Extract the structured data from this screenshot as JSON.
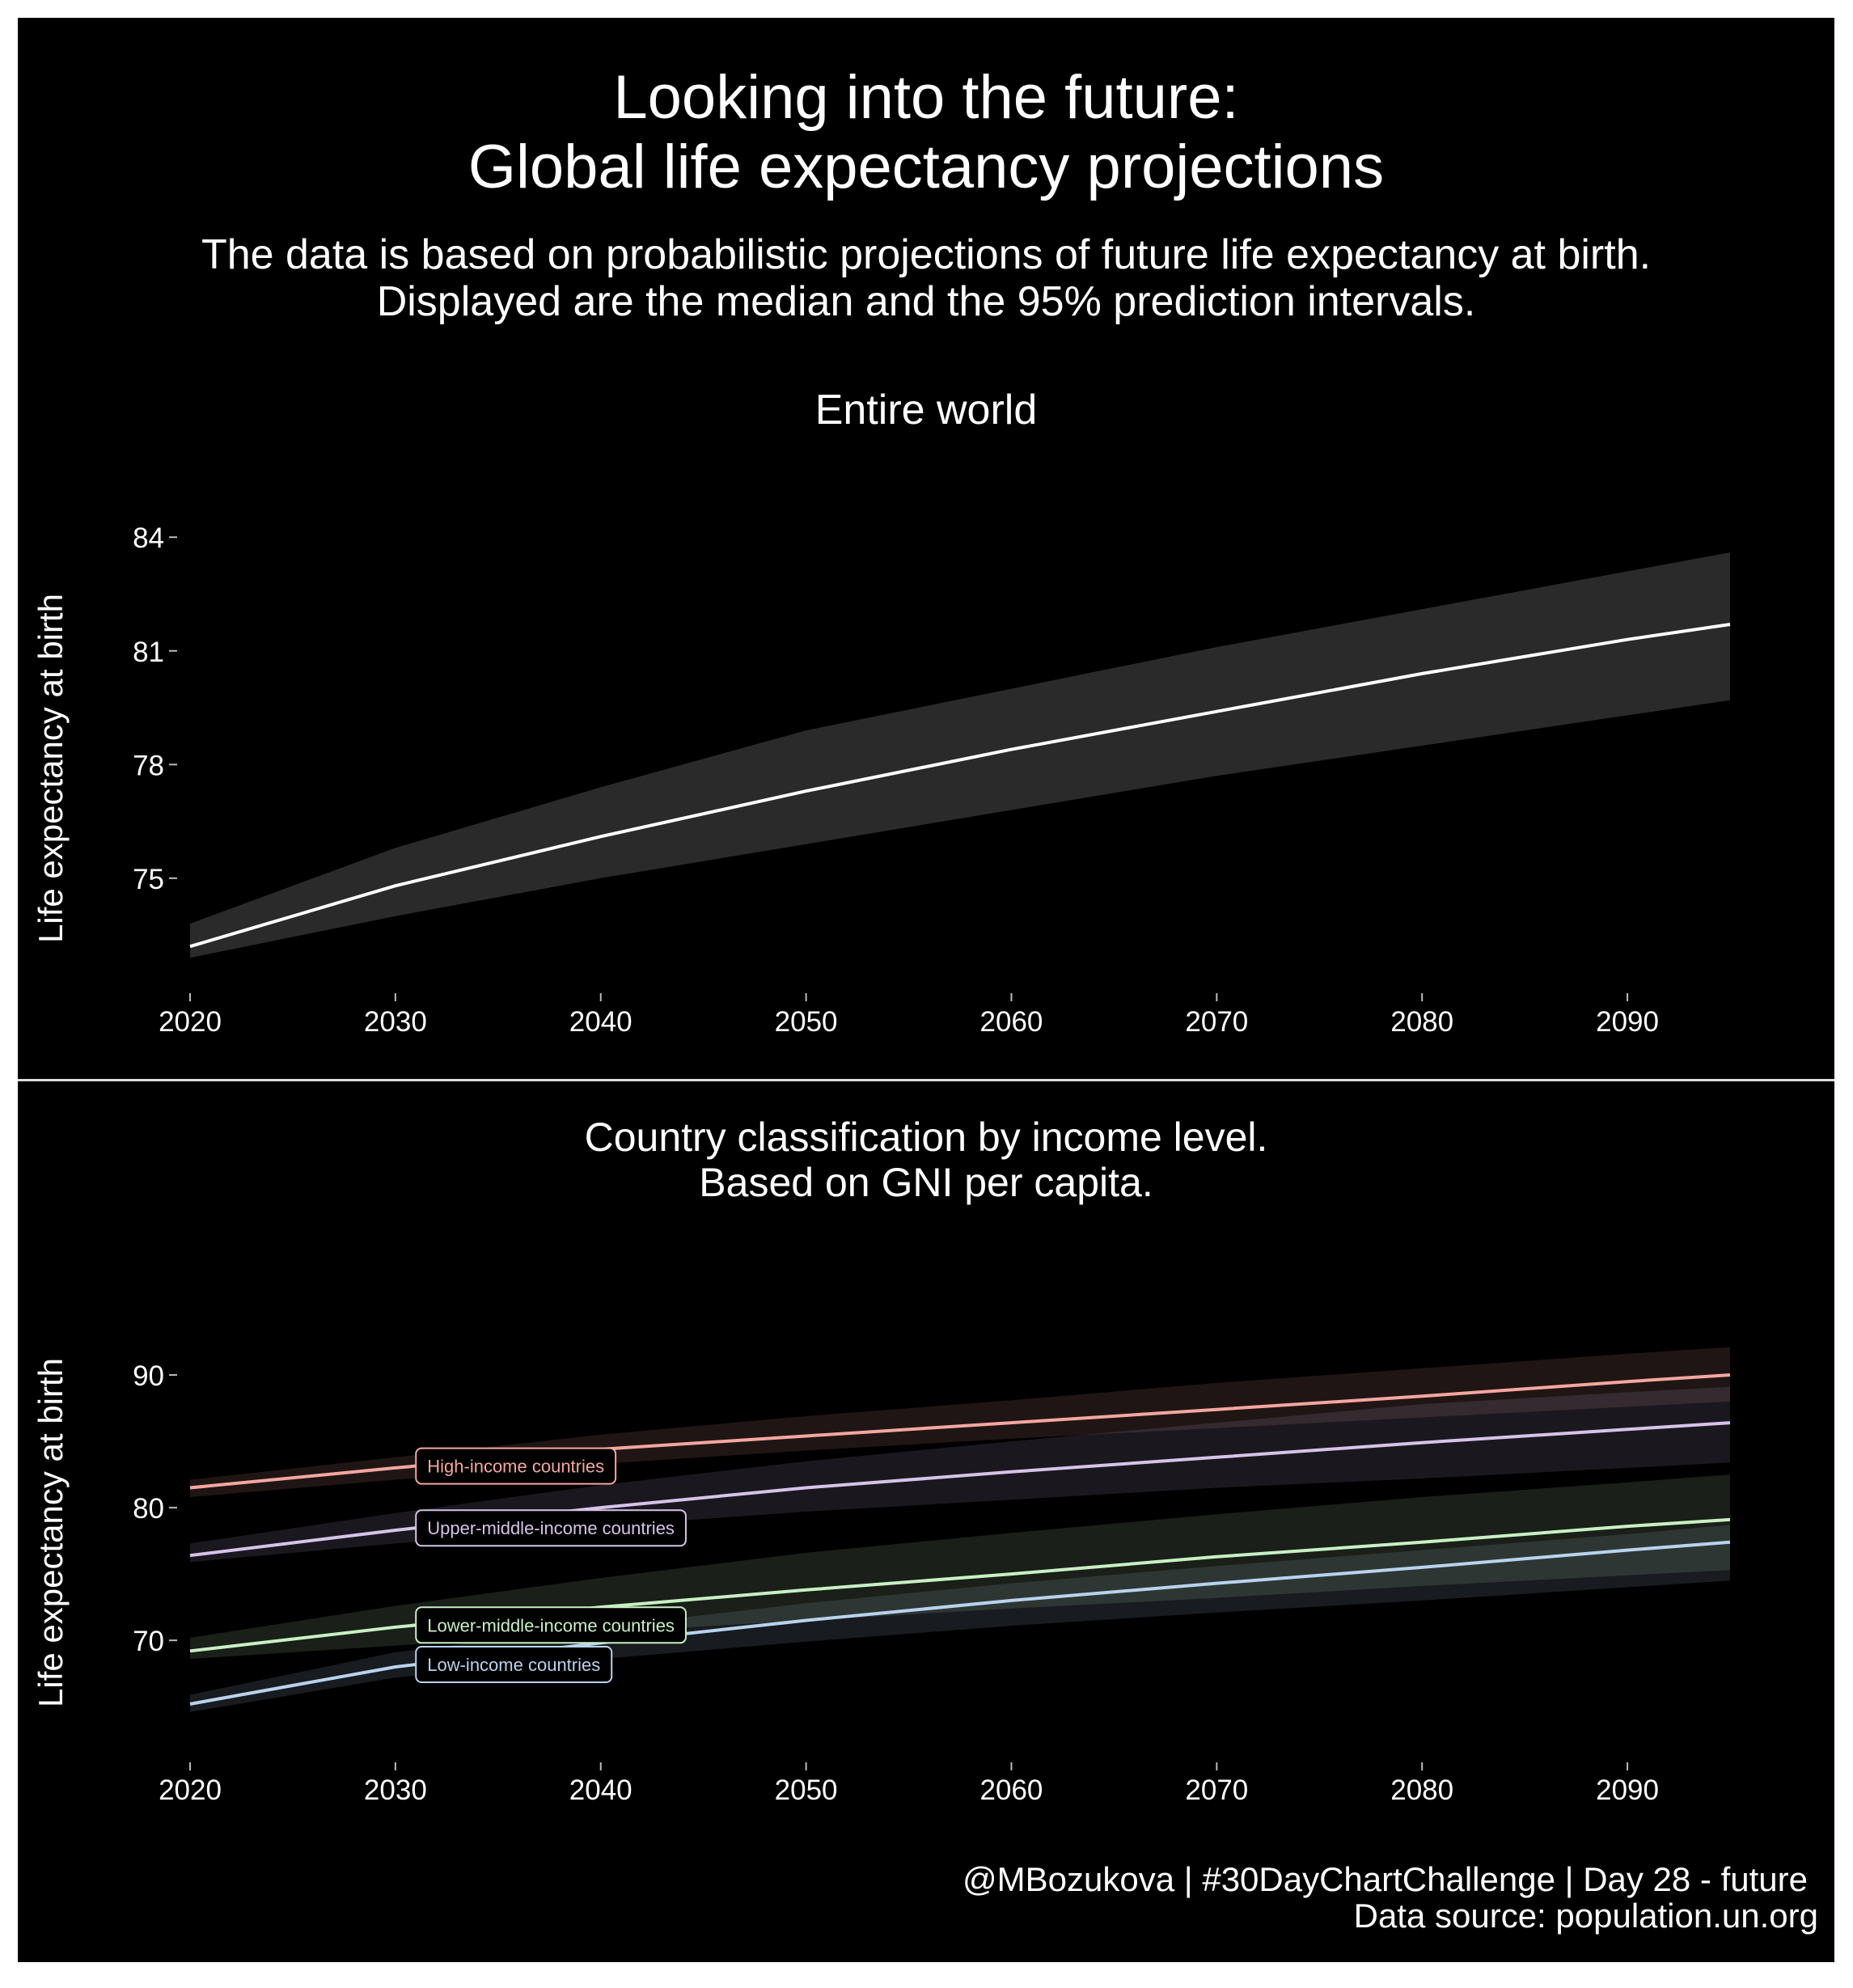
{
  "header": {
    "title_line1": "Looking into the future:",
    "title_line2": "Global life expectancy projections",
    "subtitle_line1": "The data is based on probabilistic projections of future life expectancy at birth.",
    "subtitle_line2": "Displayed are the median and the 95% prediction intervals."
  },
  "caption": {
    "line1": "@MBozukova | #30DayChartChallenge | Day 28 - future",
    "line2": "Data source: population.un.org"
  },
  "colors": {
    "background": "#000000",
    "text": "#ffffff",
    "divider": "#dddddd"
  },
  "chart_data": [
    {
      "type": "line",
      "title": "Entire world",
      "subtitle": "",
      "xlabel": "",
      "ylabel": "Life expectancy at birth",
      "xlim": [
        2020,
        2095
      ],
      "ylim": [
        72.2,
        85.2
      ],
      "x_ticks": [
        2020,
        2030,
        2040,
        2050,
        2060,
        2070,
        2080,
        2090
      ],
      "y_ticks": [
        75,
        78,
        81,
        84
      ],
      "grid": false,
      "legend": "none",
      "x": [
        2020,
        2030,
        2040,
        2050,
        2060,
        2070,
        2080,
        2090,
        2095
      ],
      "series": [
        {
          "color": "#ffffff",
          "band_color": "#2a2a2a",
          "median": [
            73.2,
            74.8,
            76.1,
            77.3,
            78.4,
            79.4,
            80.4,
            81.3,
            81.7
          ],
          "lower": [
            72.9,
            74.0,
            75.0,
            75.9,
            76.8,
            77.7,
            78.5,
            79.3,
            79.7
          ],
          "upper": [
            73.8,
            75.8,
            77.4,
            78.9,
            80.0,
            81.1,
            82.1,
            83.1,
            83.6
          ]
        }
      ]
    },
    {
      "type": "line",
      "title": "Country classification by income level.",
      "subtitle": "Based on GNI per capita.",
      "xlabel": "",
      "ylabel": "Life expectancy at birth",
      "xlim": [
        2020,
        2095
      ],
      "ylim": [
        63,
        95
      ],
      "x_ticks": [
        2020,
        2030,
        2040,
        2050,
        2060,
        2070,
        2080,
        2090
      ],
      "y_ticks": [
        70,
        80,
        90
      ],
      "grid": false,
      "legend": "inline labels",
      "x": [
        2020,
        2030,
        2040,
        2050,
        2060,
        2070,
        2080,
        2090,
        2095
      ],
      "series": [
        {
          "name": "High-income countries",
          "color": "#f4a6a0",
          "band_color": "#f4a6a0",
          "label_year": 2031,
          "median": [
            81.5,
            83.0,
            84.4,
            85.4,
            86.4,
            87.4,
            88.4,
            89.5,
            90.0
          ],
          "lower": [
            80.8,
            82.1,
            83.3,
            84.3,
            85.2,
            86.0,
            86.8,
            87.6,
            88.0
          ],
          "upper": [
            82.1,
            83.8,
            85.5,
            86.9,
            88.1,
            89.4,
            90.5,
            91.6,
            92.1
          ]
        },
        {
          "name": "Upper-middle-income countries",
          "color": "#d6c3ea",
          "band_color": "#c8b8e8",
          "label_year": 2031,
          "median": [
            76.4,
            78.3,
            80.0,
            81.5,
            82.7,
            83.8,
            84.9,
            85.9,
            86.4
          ],
          "lower": [
            75.9,
            77.3,
            78.6,
            79.7,
            80.6,
            81.5,
            82.2,
            83.0,
            83.4
          ],
          "upper": [
            77.3,
            79.6,
            81.7,
            83.5,
            85.0,
            86.4,
            87.8,
            88.7,
            89.1
          ]
        },
        {
          "name": "Lower-middle-income countries",
          "color": "#c9f0c4",
          "band_color": "#c9f0c4",
          "label_year": 2031,
          "median": [
            69.2,
            71.0,
            72.5,
            73.8,
            75.0,
            76.3,
            77.4,
            78.6,
            79.1
          ],
          "lower": [
            68.6,
            69.6,
            70.6,
            71.5,
            72.4,
            73.2,
            74.1,
            74.9,
            75.3
          ],
          "upper": [
            70.2,
            72.6,
            74.7,
            76.6,
            78.1,
            79.5,
            80.8,
            81.9,
            82.5
          ]
        },
        {
          "name": "Low-income countries",
          "color": "#b9d3ee",
          "band_color": "#b9d3ee",
          "label_year": 2031,
          "median": [
            65.2,
            68.0,
            69.8,
            71.5,
            73.0,
            74.3,
            75.5,
            76.8,
            77.4
          ],
          "lower": [
            64.6,
            67.2,
            68.6,
            69.9,
            71.1,
            72.1,
            73.0,
            74.0,
            74.5
          ],
          "upper": [
            65.9,
            69.1,
            71.0,
            72.8,
            74.3,
            75.6,
            76.8,
            78.0,
            78.7
          ]
        }
      ]
    }
  ]
}
